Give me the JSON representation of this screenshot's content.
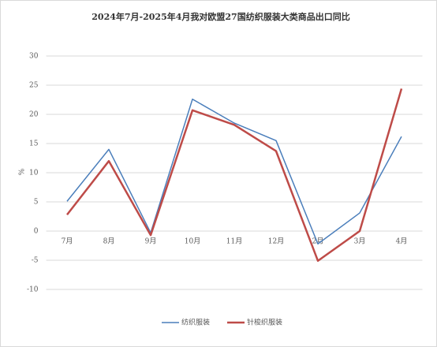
{
  "chart_data": {
    "type": "line",
    "title": "2024年7月-2025年4月我对欧盟27国纺织服装大类商品出口同比",
    "y_label": "%",
    "categories": [
      "7月",
      "8月",
      "9月",
      "10月",
      "11月",
      "12月",
      "2月",
      "3月",
      "4月"
    ],
    "series": [
      {
        "name": "纺织服装",
        "color": "#4a7ebb",
        "values": [
          5.1,
          14.0,
          -0.3,
          22.6,
          18.5,
          15.5,
          -2.2,
          3.1,
          16.2
        ]
      },
      {
        "name": "针梭织服装",
        "color": "#be4b48",
        "values": [
          2.8,
          12.0,
          -0.7,
          20.7,
          18.2,
          13.7,
          -5.1,
          0.0,
          24.4
        ]
      }
    ],
    "ylim": [
      -10,
      30
    ],
    "yticks": [
      -10,
      -5,
      0,
      5,
      10,
      15,
      20,
      25,
      30
    ],
    "grid": true,
    "legend": "bottom"
  }
}
